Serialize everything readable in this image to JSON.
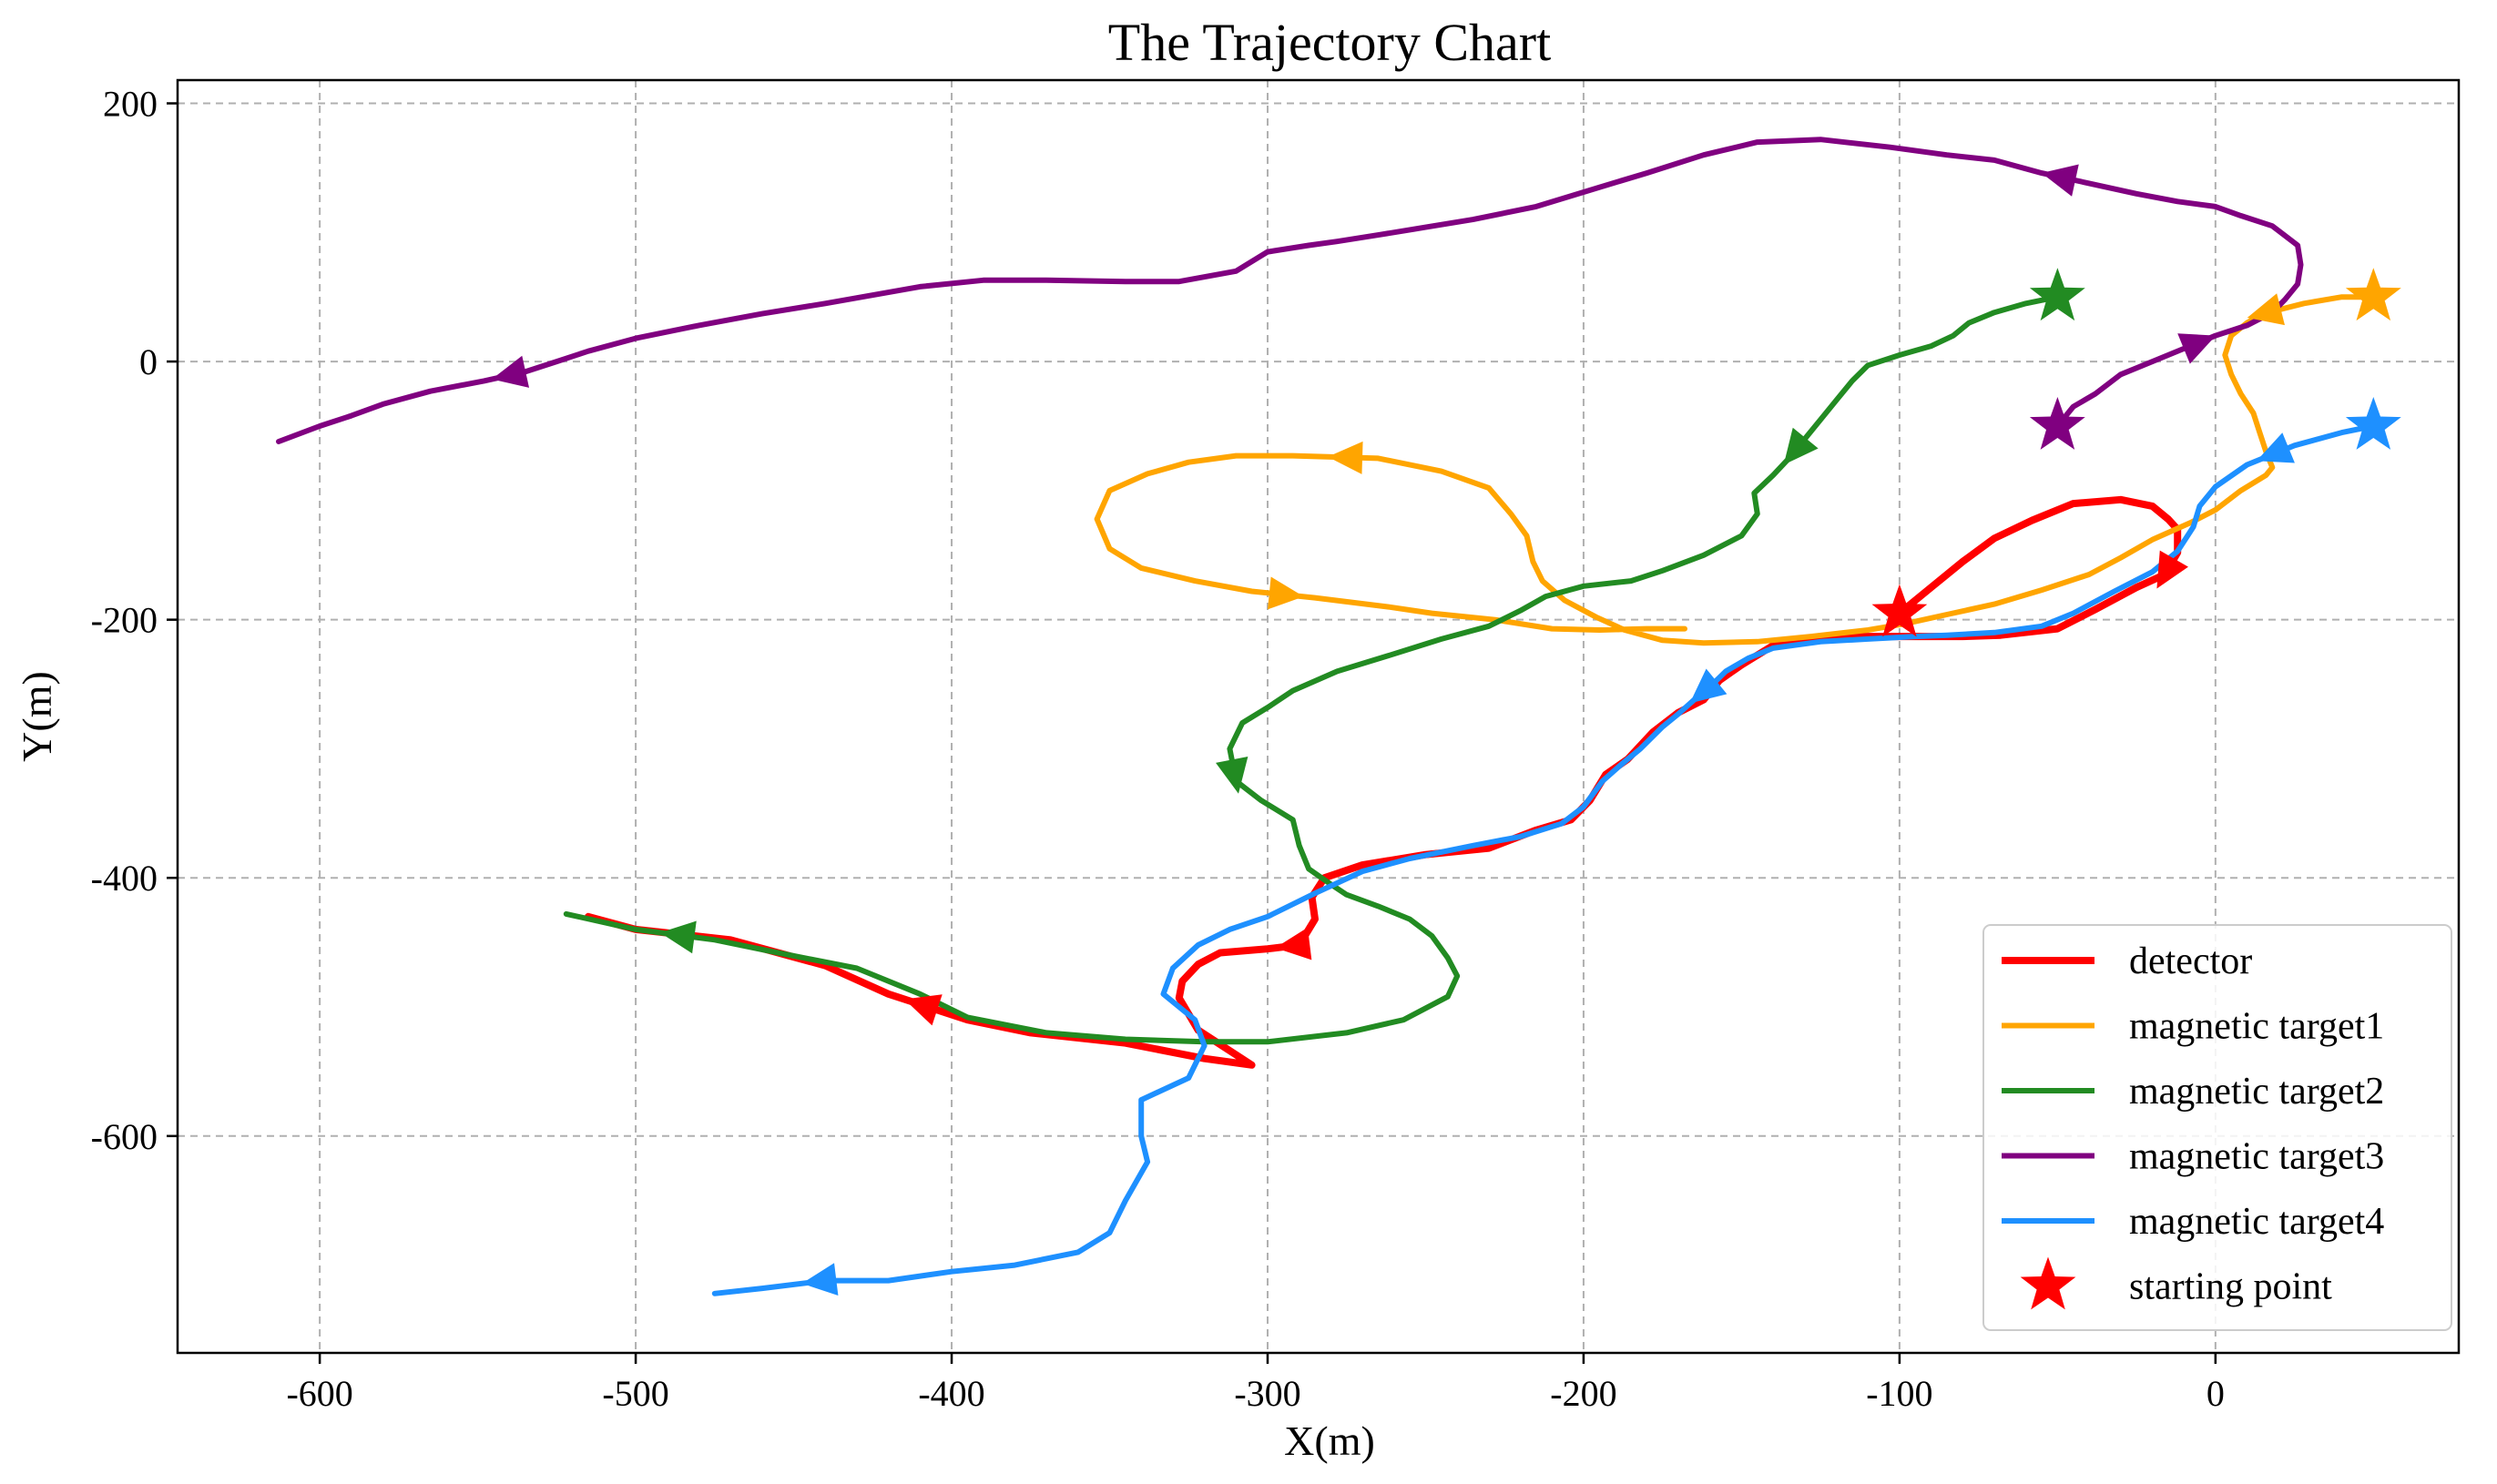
{
  "chart_data": {
    "type": "line",
    "title": "The Trajectory Chart",
    "xlabel": "X(m)",
    "ylabel": "Y(m)",
    "xlim": [
      -645,
      77
    ],
    "ylim": [
      -768,
      218
    ],
    "xticks": [
      -600,
      -500,
      -400,
      -300,
      -200,
      -100,
      0
    ],
    "yticks": [
      200,
      0,
      -200,
      -400,
      -600
    ],
    "grid": true,
    "legend_position": "bottom-right",
    "legend": [
      "detector",
      "magnetic target1",
      "magnetic target2",
      "magnetic target3",
      "magnetic target4",
      "starting point"
    ],
    "series": [
      {
        "name": "detector",
        "color": "#ff0000",
        "start": [
          -100,
          -195
        ],
        "arrow_at": [
          0.16,
          0.6,
          0.85
        ],
        "points": [
          [
            -100,
            -195
          ],
          [
            -90,
            -175
          ],
          [
            -80,
            -155
          ],
          [
            -70,
            -137
          ],
          [
            -58,
            -123
          ],
          [
            -45,
            -110
          ],
          [
            -30,
            -107
          ],
          [
            -20,
            -112
          ],
          [
            -15,
            -122
          ],
          [
            -12,
            -130
          ],
          [
            -12,
            -148
          ],
          [
            -16,
            -165
          ],
          [
            -25,
            -175
          ],
          [
            -38,
            -192
          ],
          [
            -50,
            -207
          ],
          [
            -68,
            -212
          ],
          [
            -80,
            -213
          ],
          [
            -100,
            -213
          ],
          [
            -125,
            -213
          ],
          [
            -140,
            -220
          ],
          [
            -150,
            -235
          ],
          [
            -157,
            -247
          ],
          [
            -162,
            -262
          ],
          [
            -170,
            -272
          ],
          [
            -178,
            -287
          ],
          [
            -186,
            -308
          ],
          [
            -193,
            -320
          ],
          [
            -198,
            -340
          ],
          [
            -204,
            -355
          ],
          [
            -215,
            -363
          ],
          [
            -230,
            -377
          ],
          [
            -250,
            -382
          ],
          [
            -270,
            -390
          ],
          [
            -282,
            -400
          ],
          [
            -286,
            -415
          ],
          [
            -285,
            -432
          ],
          [
            -290,
            -452
          ],
          [
            -300,
            -455
          ],
          [
            -315,
            -458
          ],
          [
            -322,
            -467
          ],
          [
            -327,
            -480
          ],
          [
            -328,
            -493
          ],
          [
            -322,
            -518
          ],
          [
            -305,
            -545
          ],
          [
            -320,
            -540
          ],
          [
            -345,
            -528
          ],
          [
            -360,
            -524
          ],
          [
            -375,
            -520
          ],
          [
            -395,
            -510
          ],
          [
            -420,
            -490
          ],
          [
            -440,
            -468
          ],
          [
            -470,
            -448
          ],
          [
            -500,
            -440
          ],
          [
            -515,
            -430
          ]
        ]
      },
      {
        "name": "magnetic target1",
        "color": "#ffa500",
        "start": [
          50,
          50
        ],
        "arrow_at": [
          0.05,
          0.6,
          0.82
        ],
        "points": [
          [
            50,
            50
          ],
          [
            40,
            50
          ],
          [
            28,
            45
          ],
          [
            15,
            37
          ],
          [
            10,
            30
          ],
          [
            5,
            20
          ],
          [
            3,
            5
          ],
          [
            5,
            -10
          ],
          [
            8,
            -25
          ],
          [
            12,
            -40
          ],
          [
            14,
            -55
          ],
          [
            16,
            -70
          ],
          [
            18,
            -82
          ],
          [
            16,
            -88
          ],
          [
            8,
            -100
          ],
          [
            0,
            -115
          ],
          [
            -8,
            -125
          ],
          [
            -20,
            -138
          ],
          [
            -30,
            -152
          ],
          [
            -40,
            -165
          ],
          [
            -55,
            -177
          ],
          [
            -70,
            -188
          ],
          [
            -85,
            -196
          ],
          [
            -98,
            -203
          ],
          [
            -110,
            -208
          ],
          [
            -128,
            -213
          ],
          [
            -145,
            -217
          ],
          [
            -162,
            -218
          ],
          [
            -175,
            -216
          ],
          [
            -187,
            -208
          ],
          [
            -196,
            -198
          ],
          [
            -206,
            -185
          ],
          [
            -213,
            -170
          ],
          [
            -216,
            -155
          ],
          [
            -218,
            -135
          ],
          [
            -223,
            -118
          ],
          [
            -230,
            -98
          ],
          [
            -245,
            -85
          ],
          [
            -265,
            -75
          ],
          [
            -292,
            -73
          ],
          [
            -310,
            -73
          ],
          [
            -325,
            -78
          ],
          [
            -338,
            -87
          ],
          [
            -350,
            -100
          ],
          [
            -354,
            -122
          ],
          [
            -350,
            -145
          ],
          [
            -340,
            -160
          ],
          [
            -323,
            -170
          ],
          [
            -305,
            -178
          ],
          [
            -285,
            -183
          ],
          [
            -262,
            -190
          ],
          [
            -248,
            -195
          ],
          [
            -228,
            -200
          ],
          [
            -210,
            -207
          ],
          [
            -195,
            -208
          ],
          [
            -180,
            -207
          ],
          [
            -168,
            -207
          ]
        ]
      },
      {
        "name": "magnetic target2",
        "color": "#228b22",
        "start": [
          -50,
          50
        ],
        "arrow_at": [
          0.14,
          0.45,
          0.95
        ],
        "points": [
          [
            -50,
            50
          ],
          [
            -60,
            45
          ],
          [
            -70,
            38
          ],
          [
            -78,
            30
          ],
          [
            -83,
            20
          ],
          [
            -90,
            12
          ],
          [
            -100,
            5
          ],
          [
            -110,
            -3
          ],
          [
            -115,
            -15
          ],
          [
            -120,
            -30
          ],
          [
            -125,
            -45
          ],
          [
            -130,
            -60
          ],
          [
            -135,
            -75
          ],
          [
            -140,
            -88
          ],
          [
            -146,
            -102
          ],
          [
            -145,
            -118
          ],
          [
            -150,
            -135
          ],
          [
            -162,
            -150
          ],
          [
            -175,
            -162
          ],
          [
            -185,
            -170
          ],
          [
            -200,
            -174
          ],
          [
            -212,
            -182
          ],
          [
            -220,
            -193
          ],
          [
            -230,
            -205
          ],
          [
            -245,
            -215
          ],
          [
            -262,
            -228
          ],
          [
            -278,
            -240
          ],
          [
            -292,
            -255
          ],
          [
            -300,
            -268
          ],
          [
            -308,
            -280
          ],
          [
            -312,
            -300
          ],
          [
            -310,
            -325
          ],
          [
            -302,
            -340
          ],
          [
            -292,
            -355
          ],
          [
            -290,
            -375
          ],
          [
            -287,
            -393
          ],
          [
            -280,
            -405
          ],
          [
            -275,
            -413
          ],
          [
            -265,
            -422
          ],
          [
            -255,
            -432
          ],
          [
            -248,
            -445
          ],
          [
            -243,
            -462
          ],
          [
            -240,
            -476
          ],
          [
            -243,
            -492
          ],
          [
            -257,
            -510
          ],
          [
            -275,
            -520
          ],
          [
            -300,
            -527
          ],
          [
            -320,
            -527
          ],
          [
            -345,
            -525
          ],
          [
            -370,
            -520
          ],
          [
            -395,
            -508
          ],
          [
            -410,
            -490
          ],
          [
            -430,
            -470
          ],
          [
            -455,
            -458
          ],
          [
            -475,
            -448
          ],
          [
            -500,
            -440
          ],
          [
            -522,
            -428
          ]
        ]
      },
      {
        "name": "magnetic target3",
        "color": "#800080",
        "start": [
          -50,
          -50
        ],
        "arrow_at": [
          0.07,
          0.24,
          0.9
        ],
        "points": [
          [
            -50,
            -50
          ],
          [
            -45,
            -35
          ],
          [
            -38,
            -25
          ],
          [
            -30,
            -10
          ],
          [
            -20,
            0
          ],
          [
            -10,
            10
          ],
          [
            0,
            20
          ],
          [
            10,
            28
          ],
          [
            18,
            38
          ],
          [
            22,
            48
          ],
          [
            26,
            60
          ],
          [
            27,
            75
          ],
          [
            26,
            90
          ],
          [
            18,
            105
          ],
          [
            8,
            113
          ],
          [
            0,
            120
          ],
          [
            -12,
            124
          ],
          [
            -25,
            130
          ],
          [
            -40,
            138
          ],
          [
            -55,
            146
          ],
          [
            -70,
            156
          ],
          [
            -85,
            160
          ],
          [
            -103,
            166
          ],
          [
            -125,
            172
          ],
          [
            -145,
            170
          ],
          [
            -162,
            160
          ],
          [
            -180,
            146
          ],
          [
            -195,
            135
          ],
          [
            -215,
            120
          ],
          [
            -235,
            110
          ],
          [
            -250,
            104
          ],
          [
            -265,
            98
          ],
          [
            -278,
            93
          ],
          [
            -287,
            90
          ],
          [
            -300,
            85
          ],
          [
            -310,
            70
          ],
          [
            -328,
            62
          ],
          [
            -345,
            62
          ],
          [
            -370,
            63
          ],
          [
            -390,
            63
          ],
          [
            -410,
            58
          ],
          [
            -440,
            45
          ],
          [
            -460,
            37
          ],
          [
            -480,
            28
          ],
          [
            -500,
            18
          ],
          [
            -515,
            8
          ],
          [
            -525,
            0
          ],
          [
            -535,
            -8
          ],
          [
            -548,
            -15
          ],
          [
            -565,
            -23
          ],
          [
            -580,
            -33
          ],
          [
            -590,
            -42
          ],
          [
            -600,
            -50
          ],
          [
            -613,
            -62
          ]
        ]
      },
      {
        "name": "magnetic target4",
        "color": "#1e90ff",
        "start": [
          50,
          -50
        ],
        "arrow_at": [
          0.05,
          0.36,
          0.95
        ],
        "points": [
          [
            50,
            -50
          ],
          [
            40,
            -55
          ],
          [
            25,
            -65
          ],
          [
            10,
            -80
          ],
          [
            0,
            -97
          ],
          [
            -5,
            -112
          ],
          [
            -7,
            -128
          ],
          [
            -12,
            -147
          ],
          [
            -20,
            -163
          ],
          [
            -32,
            -178
          ],
          [
            -45,
            -195
          ],
          [
            -55,
            -205
          ],
          [
            -70,
            -210
          ],
          [
            -85,
            -212
          ],
          [
            -95,
            -213
          ],
          [
            -110,
            -215
          ],
          [
            -125,
            -217
          ],
          [
            -140,
            -222
          ],
          [
            -148,
            -230
          ],
          [
            -155,
            -240
          ],
          [
            -160,
            -252
          ],
          [
            -165,
            -262
          ],
          [
            -170,
            -273
          ],
          [
            -175,
            -283
          ],
          [
            -182,
            -300
          ],
          [
            -188,
            -312
          ],
          [
            -194,
            -325
          ],
          [
            -200,
            -345
          ],
          [
            -207,
            -358
          ],
          [
            -220,
            -368
          ],
          [
            -235,
            -375
          ],
          [
            -255,
            -385
          ],
          [
            -270,
            -395
          ],
          [
            -285,
            -412
          ],
          [
            -300,
            -430
          ],
          [
            -312,
            -440
          ],
          [
            -322,
            -452
          ],
          [
            -330,
            -470
          ],
          [
            -333,
            -490
          ],
          [
            -323,
            -510
          ],
          [
            -320,
            -530
          ],
          [
            -325,
            -555
          ],
          [
            -340,
            -572
          ],
          [
            -340,
            -600
          ],
          [
            -338,
            -620
          ],
          [
            -345,
            -650
          ],
          [
            -350,
            -675
          ],
          [
            -360,
            -690
          ],
          [
            -380,
            -700
          ],
          [
            -400,
            -705
          ],
          [
            -420,
            -712
          ],
          [
            -440,
            -712
          ],
          [
            -460,
            -718
          ],
          [
            -475,
            -722
          ]
        ]
      }
    ]
  }
}
